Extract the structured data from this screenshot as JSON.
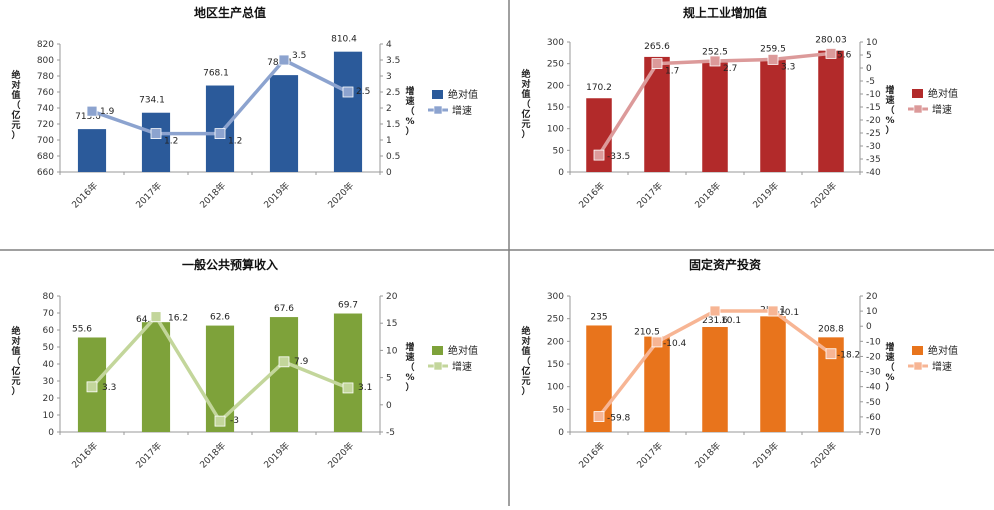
{
  "chart_data": [
    {
      "type": "bar",
      "title": "地区生产总值",
      "categories": [
        "2016年",
        "2017年",
        "2018年",
        "2019年",
        "2020年"
      ],
      "series": [
        {
          "name": "绝对值",
          "type": "bar",
          "axis": "left",
          "values": [
            713.6,
            734.1,
            768.1,
            781.1,
            810.4
          ]
        },
        {
          "name": "增速",
          "type": "line",
          "axis": "right",
          "values": [
            1.9,
            1.2,
            1.2,
            3.5,
            2.5
          ]
        }
      ],
      "ylabel": "绝对值（亿元）",
      "y2label": "增速（%）",
      "ylim": [
        660,
        820
      ],
      "yticks": [
        660,
        680,
        700,
        720,
        740,
        760,
        780,
        800,
        820
      ],
      "y2lim": [
        0,
        4
      ],
      "y2ticks": [
        0,
        0.5,
        1,
        1.5,
        2,
        2.5,
        3,
        3.5,
        4
      ],
      "legend": "right",
      "colors": {
        "bar": "#2b5a9a",
        "line": "#8ca3cf"
      }
    },
    {
      "type": "bar",
      "title": "规上工业增加值",
      "categories": [
        "2016年",
        "2017年",
        "2018年",
        "2019年",
        "2020年"
      ],
      "series": [
        {
          "name": "绝对值",
          "type": "bar",
          "axis": "left",
          "values": [
            170.2,
            265.6,
            252.5,
            259.5,
            280.03
          ]
        },
        {
          "name": "增速",
          "type": "line",
          "axis": "right",
          "values": [
            -33.5,
            1.7,
            2.7,
            3.3,
            5.6
          ]
        }
      ],
      "ylabel": "绝对值（亿元）",
      "y2label": "增速（%）",
      "ylim": [
        0,
        300
      ],
      "yticks": [
        0,
        50,
        100,
        150,
        200,
        250,
        300
      ],
      "y2lim": [
        -40,
        10
      ],
      "y2ticks": [
        -40,
        -35,
        -30,
        -25,
        -20,
        -15,
        -10,
        -5,
        0,
        5,
        10
      ],
      "legend": "right",
      "colors": {
        "bar": "#b22a2a",
        "line": "#dc9a9a"
      }
    },
    {
      "type": "bar",
      "title": "一般公共预算收入",
      "categories": [
        "2016年",
        "2017年",
        "2018年",
        "2019年",
        "2020年"
      ],
      "series": [
        {
          "name": "绝对值",
          "type": "bar",
          "axis": "left",
          "values": [
            55.6,
            64.6,
            62.6,
            67.6,
            69.7
          ]
        },
        {
          "name": "增速",
          "type": "line",
          "axis": "right",
          "values": [
            3.3,
            16.2,
            -3,
            7.9,
            3.1
          ]
        }
      ],
      "ylabel": "绝对值（亿元）",
      "y2label": "增速（%）",
      "ylim": [
        0,
        80
      ],
      "yticks": [
        0,
        10,
        20,
        30,
        40,
        50,
        60,
        70,
        80
      ],
      "y2lim": [
        -5,
        20
      ],
      "y2ticks": [
        -5,
        0,
        5,
        10,
        15,
        20
      ],
      "legend": "right",
      "colors": {
        "bar": "#7ea23a",
        "line": "#c3d69b"
      }
    },
    {
      "type": "bar",
      "title": "固定资产投资",
      "categories": [
        "2016年",
        "2017年",
        "2018年",
        "2019年",
        "2020年"
      ],
      "series": [
        {
          "name": "绝对值",
          "type": "bar",
          "axis": "left",
          "values": [
            235,
            210.5,
            231.6,
            255.1,
            208.8
          ]
        },
        {
          "name": "增速",
          "type": "line",
          "axis": "right",
          "values": [
            -59.8,
            -10.4,
            10.1,
            10.1,
            -18.2
          ]
        }
      ],
      "ylabel": "绝对值（亿元）",
      "y2label": "增速（%）",
      "ylim": [
        0,
        300
      ],
      "yticks": [
        0,
        50,
        100,
        150,
        200,
        250,
        300
      ],
      "y2lim": [
        -70,
        20
      ],
      "y2ticks": [
        -70,
        -60,
        -50,
        -40,
        -30,
        -20,
        -10,
        0,
        10,
        20
      ],
      "legend": "right",
      "colors": {
        "bar": "#e8741c",
        "line": "#f7b594"
      }
    }
  ]
}
